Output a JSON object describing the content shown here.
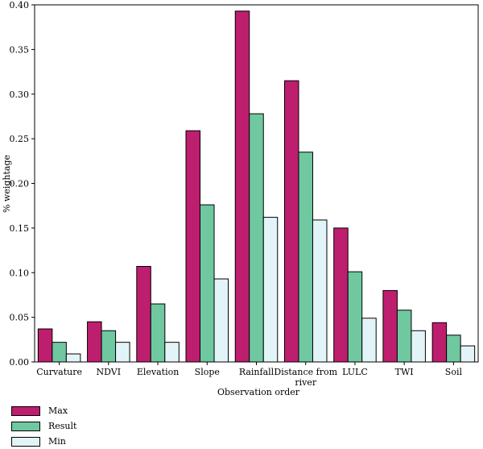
{
  "chart_data": {
    "type": "bar",
    "xlabel": "Observation order",
    "ylabel": "% weightage",
    "ylim": [
      0,
      0.4
    ],
    "yticks": [
      "0.00",
      "0.05",
      "0.10",
      "0.15",
      "0.20",
      "0.25",
      "0.30",
      "0.35",
      "0.40"
    ],
    "categories": [
      "Curvature",
      "NDVI",
      "Elevation",
      "Slope",
      "Rainfall",
      "Distance from river",
      "LULC",
      "TWI",
      "Soil"
    ],
    "series": [
      {
        "name": "Max",
        "color": "#be1e6e",
        "values": [
          0.037,
          0.045,
          0.107,
          0.259,
          0.393,
          0.315,
          0.15,
          0.08,
          0.044
        ]
      },
      {
        "name": "Result",
        "color": "#6fc8a0",
        "values": [
          0.022,
          0.035,
          0.065,
          0.176,
          0.278,
          0.235,
          0.101,
          0.058,
          0.03
        ]
      },
      {
        "name": "Min",
        "color": "#e3f4f8",
        "values": [
          0.009,
          0.022,
          0.022,
          0.093,
          0.162,
          0.159,
          0.049,
          0.035,
          0.018
        ]
      }
    ],
    "legend_position": "bottom-left",
    "grid": false
  }
}
